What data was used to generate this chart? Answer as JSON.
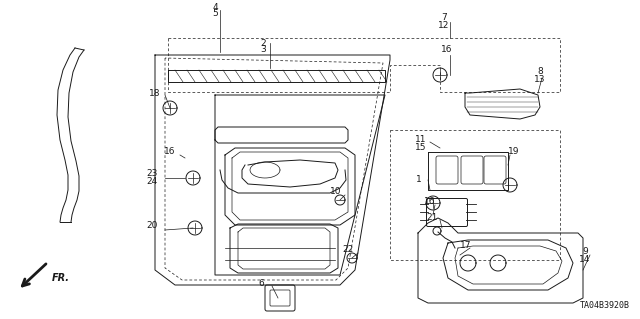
{
  "bg_color": "#ffffff",
  "diagram_code": "TA04B3920B",
  "label_fontsize": 6.5,
  "lw": 0.7
}
